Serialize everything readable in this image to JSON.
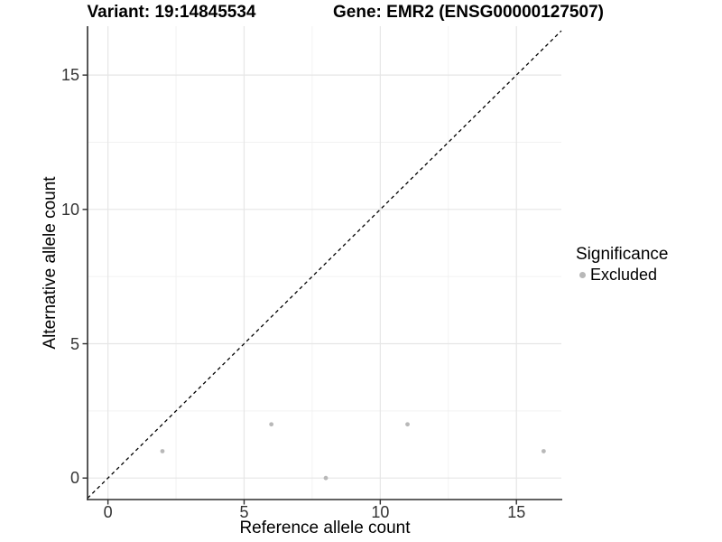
{
  "titles": {
    "variant": "Variant: 19:14845534",
    "gene": "Gene: EMR2 (ENSG00000127507)"
  },
  "axes": {
    "x": {
      "label": "Reference allele count",
      "tick_labels": [
        "0",
        "5",
        "10",
        "15"
      ]
    },
    "y": {
      "label": "Alternative allele count",
      "tick_labels": [
        "0",
        "5",
        "10",
        "15"
      ]
    }
  },
  "legend": {
    "title": "Significance",
    "items": [
      {
        "label": "Excluded",
        "color": "#b8b8b8"
      }
    ]
  },
  "colors": {
    "background": "#ffffff",
    "point_gray": "#b8b8b8",
    "grid_major": "#e6e6e6",
    "grid_minor": "#f2f2f2",
    "axis_line": "#2f2f2f",
    "reference_line": "#000000",
    "title_text": "#000000",
    "tick_text": "#333333"
  },
  "chart_data": {
    "type": "scatter",
    "title": "Variant: 19:14845534 / Gene: EMR2 (ENSG00000127507)",
    "xlabel": "Reference allele count",
    "ylabel": "Alternative allele count",
    "xlim": [
      -0.75,
      16.65
    ],
    "ylim": [
      -0.8,
      16.82
    ],
    "x_ticks": [
      0,
      5,
      10,
      15
    ],
    "y_ticks": [
      0,
      5,
      10,
      15
    ],
    "x_minor_ticks": [
      2.5,
      7.5,
      12.5
    ],
    "y_minor_ticks": [
      2.5,
      7.5,
      12.5
    ],
    "grid": true,
    "legend_position": "right",
    "series": [
      {
        "name": "Excluded",
        "color": "#b8b8b8",
        "points": [
          [
            2,
            1
          ],
          [
            6,
            2
          ],
          [
            8,
            0
          ],
          [
            11,
            2
          ],
          [
            16,
            1
          ]
        ]
      }
    ],
    "reference_line": {
      "type": "identity",
      "style": "dashed",
      "color": "#000000"
    }
  }
}
